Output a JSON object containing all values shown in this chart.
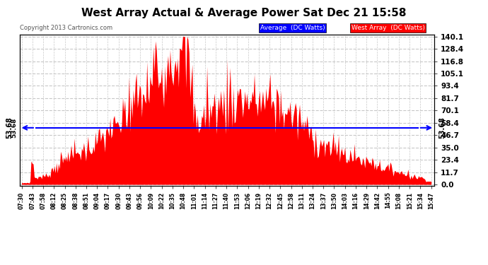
{
  "title": "West Array Actual & Average Power Sat Dec 21 15:58",
  "copyright": "Copyright 2013 Cartronics.com",
  "legend_avg": "Average  (DC Watts)",
  "legend_west": "West Array  (DC Watts)",
  "ylabel_right_values": [
    140.1,
    128.4,
    116.8,
    105.1,
    93.4,
    81.7,
    70.1,
    58.4,
    46.7,
    35.0,
    23.4,
    11.7,
    0.0
  ],
  "ymax": 140.1,
  "ymin": 0.0,
  "average_line_y": 53.68,
  "average_label": "53.68",
  "bg_color": "#ffffff",
  "plot_bg_color": "#ffffff",
  "grid_color": "#c8c8c8",
  "fill_color": "#ff0000",
  "line_color": "#ff0000",
  "avg_line_color": "#0000ff",
  "title_color": "#000000",
  "x_tick_labels": [
    "07:30",
    "07:43",
    "07:58",
    "08:12",
    "08:25",
    "08:38",
    "08:51",
    "09:04",
    "09:17",
    "09:30",
    "09:43",
    "09:56",
    "10:09",
    "10:22",
    "10:35",
    "10:48",
    "11:01",
    "11:14",
    "11:27",
    "11:40",
    "11:53",
    "12:06",
    "12:19",
    "12:32",
    "12:45",
    "12:58",
    "13:11",
    "13:24",
    "13:37",
    "13:50",
    "14:03",
    "14:16",
    "14:29",
    "14:42",
    "14:55",
    "15:08",
    "15:21",
    "15:34",
    "15:47"
  ],
  "num_points": 390
}
